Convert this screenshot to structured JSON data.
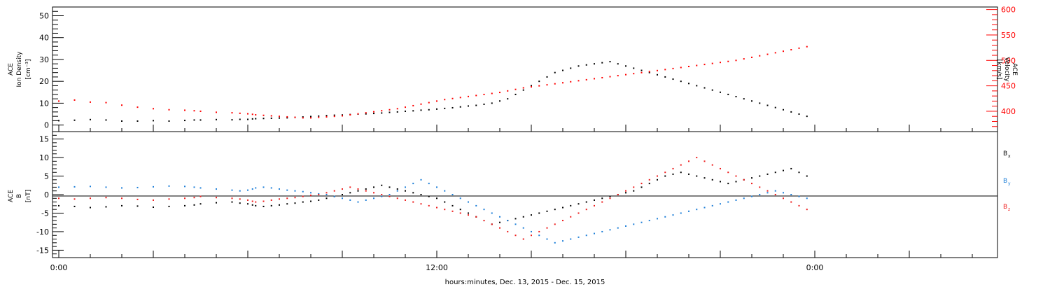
{
  "chart_data": [
    {
      "type": "scatter",
      "panel": "top",
      "ylabel_lines": [
        "ACE",
        "Ion Density",
        "[cm⁻³]"
      ],
      "ylim": [
        -3,
        54
      ],
      "yticks": [
        0,
        10,
        20,
        30,
        40,
        50
      ],
      "ylabel_right_lines": [
        "ACE",
        "Velocity",
        "[km/s]"
      ],
      "ylim_right": [
        360,
        605
      ],
      "yticks_right": [
        400,
        450,
        500,
        550,
        600
      ],
      "grid": false,
      "series": [
        {
          "axis": "left",
          "color": "#000000",
          "x": [
            0.0,
            1.0,
            2.0,
            3.0,
            4.0,
            5.0,
            6.0,
            7.0,
            8.0,
            8.6,
            9.0,
            10.0,
            11.0,
            11.5,
            12.0,
            12.3,
            12.5,
            13.0,
            13.5,
            14.0,
            14.5,
            15.0,
            15.5,
            16.0,
            16.5,
            17.0,
            17.5,
            18.0,
            18.5,
            19.0,
            19.5,
            20.0,
            20.5,
            21.0,
            21.5,
            22.0,
            22.5,
            23.0,
            23.5,
            24.0,
            24.5,
            25.0,
            25.5,
            26.0,
            26.5,
            27.0,
            27.5,
            28.0,
            28.5,
            29.0,
            29.5,
            30.0,
            30.5,
            31.0,
            31.5,
            32.0,
            32.5,
            33.0,
            33.5,
            34.0,
            34.5,
            35.0,
            35.5,
            36.0,
            36.5,
            37.0,
            37.5,
            38.0,
            38.5,
            39.0,
            39.5,
            40.0,
            40.5,
            41.0,
            41.5,
            42.0,
            42.5,
            43.0,
            43.5,
            44.0,
            44.5,
            45.0,
            45.5,
            46.0,
            46.5,
            47.0,
            47.5
          ],
          "y": [
            2,
            2.2,
            2.5,
            2.3,
            1.8,
            1.8,
            2.0,
            1.8,
            2.1,
            2.3,
            2.3,
            2.5,
            2.4,
            2.6,
            2.6,
            2.8,
            2.9,
            3.0,
            3.1,
            3.2,
            3.3,
            3.5,
            3.7,
            3.9,
            4.1,
            4.3,
            4.5,
            4.6,
            4.8,
            5.0,
            5.1,
            5.3,
            5.5,
            5.8,
            6.0,
            6.3,
            6.5,
            6.8,
            7.0,
            7.3,
            7.6,
            7.9,
            8.3,
            8.7,
            9.0,
            9.5,
            10.0,
            11.0,
            12.0,
            14.0,
            16.0,
            18.0,
            20.0,
            22.0,
            24.0,
            25.0,
            26.0,
            27.0,
            27.5,
            28.0,
            28.5,
            29.0,
            28.0,
            27.0,
            26.0,
            25.0,
            24.0,
            23.0,
            22.0,
            21.0,
            20.0,
            19.0,
            18.0,
            17.0,
            16.0,
            15.0,
            14.0,
            13.0,
            12.0,
            11.0,
            10.0,
            9.0,
            8.0,
            7.0,
            6.0,
            5.0,
            4.0
          ]
        },
        {
          "axis": "right",
          "color": "#ff0000",
          "x": [
            0.0,
            1.0,
            2.0,
            3.0,
            4.0,
            5.0,
            6.0,
            7.0,
            8.0,
            8.6,
            9.0,
            10.0,
            11.0,
            11.5,
            12.0,
            12.3,
            12.5,
            13.0,
            13.5,
            14.0,
            14.5,
            15.0,
            15.5,
            16.0,
            16.5,
            17.0,
            17.5,
            18.0,
            18.5,
            19.0,
            19.5,
            20.0,
            20.5,
            21.0,
            21.5,
            22.0,
            22.5,
            23.0,
            23.5,
            24.0,
            24.5,
            25.0,
            25.5,
            26.0,
            26.5,
            27.0,
            27.5,
            28.0,
            28.5,
            29.0,
            29.5,
            30.0,
            30.5,
            31.0,
            31.5,
            32.0,
            32.5,
            33.0,
            33.5,
            34.0,
            34.5,
            35.0,
            35.5,
            36.0,
            36.5,
            37.0,
            37.5,
            38.0,
            38.5,
            39.0,
            39.5,
            40.0,
            40.5,
            41.0,
            41.5,
            42.0,
            42.5,
            43.0,
            43.5,
            44.0,
            44.5,
            45.0,
            45.5,
            46.0,
            46.5,
            47.0,
            47.5
          ],
          "y": [
            420,
            422,
            418,
            417,
            412,
            408,
            405,
            403,
            402,
            401,
            400,
            398,
            397,
            396,
            395,
            394,
            393,
            392,
            391,
            390,
            389,
            388,
            387,
            387,
            388,
            389,
            390,
            391,
            393,
            395,
            397,
            399,
            401,
            403,
            405,
            408,
            411,
            414,
            417,
            420,
            423,
            425,
            427,
            429,
            431,
            433,
            435,
            437,
            440,
            443,
            446,
            448,
            450,
            452,
            454,
            456,
            458,
            460,
            462,
            464,
            466,
            468,
            470,
            472,
            474,
            476,
            478,
            480,
            482,
            484,
            486,
            488,
            490,
            492,
            494,
            496,
            498,
            500,
            503,
            506,
            509,
            512,
            515,
            518,
            521,
            524,
            527
          ]
        }
      ]
    },
    {
      "type": "scatter",
      "panel": "bottom",
      "ylabel_lines": [
        "ACE",
        "B",
        "[nT]"
      ],
      "ylim": [
        -17,
        17
      ],
      "yticks": [
        -15,
        -10,
        -5,
        0,
        5,
        10,
        15
      ],
      "zero_line": true,
      "grid": false,
      "legend": "right",
      "series": [
        {
          "name": "B",
          "subscript": "x",
          "color": "#000000",
          "x": [
            0.0,
            1.0,
            2.0,
            3.0,
            4.0,
            5.0,
            6.0,
            7.0,
            8.0,
            8.6,
            9.0,
            10.0,
            11.0,
            11.5,
            12.0,
            12.3,
            12.5,
            13.0,
            13.5,
            14.0,
            14.5,
            15.0,
            15.5,
            16.0,
            16.5,
            17.0,
            17.5,
            18.0,
            18.5,
            19.0,
            19.5,
            20.0,
            20.5,
            21.0,
            21.5,
            22.0,
            22.5,
            23.0,
            23.5,
            24.0,
            24.5,
            25.0,
            25.5,
            26.0,
            26.5,
            27.0,
            27.5,
            28.0,
            28.5,
            29.0,
            29.5,
            30.0,
            30.5,
            31.0,
            31.5,
            32.0,
            32.5,
            33.0,
            33.5,
            34.0,
            34.5,
            35.0,
            35.5,
            36.0,
            36.5,
            37.0,
            37.5,
            38.0,
            38.5,
            39.0,
            39.5,
            40.0,
            40.5,
            41.0,
            41.5,
            42.0,
            42.5,
            43.0,
            43.5,
            44.0,
            44.5,
            45.0,
            45.5,
            46.0,
            46.5,
            47.0,
            47.5
          ],
          "y": [
            -3,
            -3.2,
            -3.5,
            -3.3,
            -3.0,
            -3.1,
            -3.4,
            -3.2,
            -3.0,
            -2.8,
            -2.5,
            -2.2,
            -2.0,
            -2.3,
            -2.5,
            -2.8,
            -3.0,
            -3.2,
            -3.0,
            -2.8,
            -2.5,
            -2.3,
            -2.0,
            -1.8,
            -1.5,
            -1.0,
            -0.5,
            0.0,
            0.5,
            1.0,
            1.5,
            2.0,
            2.5,
            2.0,
            1.5,
            1.0,
            0.5,
            0.0,
            -0.5,
            -1.0,
            -2.0,
            -3.0,
            -4.0,
            -5.0,
            -6.0,
            -7.0,
            -8.0,
            -7.5,
            -7.0,
            -6.5,
            -6.0,
            -5.5,
            -5.0,
            -4.5,
            -4.0,
            -3.5,
            -3.0,
            -2.5,
            -2.0,
            -1.5,
            -1.0,
            -0.5,
            0.0,
            0.5,
            1.0,
            2.0,
            3.0,
            4.0,
            5.0,
            5.5,
            6.0,
            5.5,
            5.0,
            4.5,
            4.0,
            3.5,
            3.0,
            3.5,
            4.0,
            4.5,
            5.0,
            5.5,
            6.0,
            6.5,
            7.0,
            6.0,
            5.0
          ]
        },
        {
          "name": "B",
          "subscript": "y",
          "color": "#1e7fd8",
          "x": [
            0.0,
            1.0,
            2.0,
            3.0,
            4.0,
            5.0,
            6.0,
            7.0,
            8.0,
            8.6,
            9.0,
            10.0,
            11.0,
            11.5,
            12.0,
            12.3,
            12.5,
            13.0,
            13.5,
            14.0,
            14.5,
            15.0,
            15.5,
            16.0,
            16.5,
            17.0,
            17.5,
            18.0,
            18.5,
            19.0,
            19.5,
            20.0,
            20.5,
            21.0,
            21.5,
            22.0,
            22.5,
            23.0,
            23.5,
            24.0,
            24.5,
            25.0,
            25.5,
            26.0,
            26.5,
            27.0,
            27.5,
            28.0,
            28.5,
            29.0,
            29.5,
            30.0,
            30.5,
            31.0,
            31.5,
            32.0,
            32.5,
            33.0,
            33.5,
            34.0,
            34.5,
            35.0,
            35.5,
            36.0,
            36.5,
            37.0,
            37.5,
            38.0,
            38.5,
            39.0,
            39.5,
            40.0,
            40.5,
            41.0,
            41.5,
            42.0,
            42.5,
            43.0,
            43.5,
            44.0,
            44.5,
            45.0,
            45.5,
            46.0,
            46.5,
            47.0,
            47.5
          ],
          "y": [
            2,
            2.1,
            2.2,
            2.0,
            1.8,
            1.9,
            2.1,
            2.3,
            2.2,
            2.0,
            1.8,
            1.5,
            1.2,
            1.0,
            1.2,
            1.5,
            1.8,
            2.0,
            1.8,
            1.5,
            1.2,
            1.0,
            0.8,
            0.5,
            0.2,
            0.0,
            -0.5,
            -1.0,
            -1.5,
            -2.0,
            -1.5,
            -1.0,
            -0.5,
            0.0,
            1.0,
            2.0,
            3.0,
            4.0,
            3.0,
            2.0,
            1.0,
            0.0,
            -1.0,
            -2.0,
            -3.0,
            -4.0,
            -5.0,
            -6.0,
            -7.0,
            -8.0,
            -9.0,
            -10.0,
            -11.0,
            -12.0,
            -13.0,
            -12.5,
            -12.0,
            -11.5,
            -11.0,
            -10.5,
            -10.0,
            -9.5,
            -9.0,
            -8.5,
            -8.0,
            -7.5,
            -7.0,
            -6.5,
            -6.0,
            -5.5,
            -5.0,
            -4.5,
            -4.0,
            -3.5,
            -3.0,
            -2.5,
            -2.0,
            -1.5,
            -1.0,
            -0.5,
            0.0,
            0.5,
            1.0,
            0.5,
            0.0,
            -0.5,
            -1.0
          ]
        },
        {
          "name": "B",
          "subscript": "z",
          "color": "#ee1c1c",
          "x": [
            0.0,
            1.0,
            2.0,
            3.0,
            4.0,
            5.0,
            6.0,
            7.0,
            8.0,
            8.6,
            9.0,
            10.0,
            11.0,
            11.5,
            12.0,
            12.3,
            12.5,
            13.0,
            13.5,
            14.0,
            14.5,
            15.0,
            15.5,
            16.0,
            16.5,
            17.0,
            17.5,
            18.0,
            18.5,
            19.0,
            19.5,
            20.0,
            20.5,
            21.0,
            21.5,
            22.0,
            22.5,
            23.0,
            23.5,
            24.0,
            24.5,
            25.0,
            25.5,
            26.0,
            26.5,
            27.0,
            27.5,
            28.0,
            28.5,
            29.0,
            29.5,
            30.0,
            30.5,
            31.0,
            31.5,
            32.0,
            32.5,
            33.0,
            33.5,
            34.0,
            34.5,
            35.0,
            35.5,
            36.0,
            36.5,
            37.0,
            37.5,
            38.0,
            38.5,
            39.0,
            39.5,
            40.0,
            40.5,
            41.0,
            41.5,
            42.0,
            42.5,
            43.0,
            43.5,
            44.0,
            44.5,
            45.0,
            45.5,
            46.0,
            46.5,
            47.0,
            47.5
          ],
          "y": [
            -1,
            -1.2,
            -1.0,
            -0.8,
            -1.0,
            -1.3,
            -1.5,
            -1.2,
            -1.0,
            -0.8,
            -0.5,
            -0.8,
            -1.0,
            -1.2,
            -1.5,
            -1.8,
            -2.0,
            -1.8,
            -1.5,
            -1.2,
            -1.0,
            -0.8,
            -0.5,
            -0.2,
            0.0,
            0.5,
            1.0,
            1.5,
            2.0,
            1.5,
            1.0,
            0.5,
            0.0,
            -0.5,
            -1.0,
            -1.5,
            -2.0,
            -2.5,
            -3.0,
            -3.5,
            -4.0,
            -4.5,
            -5.0,
            -5.5,
            -6.0,
            -7.0,
            -8.0,
            -9.0,
            -10.0,
            -11.0,
            -12.0,
            -11.0,
            -10.0,
            -9.0,
            -8.0,
            -7.0,
            -6.0,
            -5.0,
            -4.0,
            -3.0,
            -2.0,
            -1.0,
            0.0,
            1.0,
            2.0,
            3.0,
            4.0,
            5.0,
            6.0,
            7.0,
            8.0,
            9.0,
            10.0,
            9.0,
            8.0,
            7.0,
            6.0,
            5.0,
            4.0,
            3.0,
            2.0,
            1.0,
            0.0,
            -1.0,
            -2.0,
            -3.0,
            -4.0
          ]
        }
      ]
    }
  ],
  "x_axis": {
    "range_hours": [
      -0.4,
      59.6
    ],
    "tick_labels": [
      {
        "hour": 0,
        "label": "0:00"
      },
      {
        "hour": 24,
        "label": "12:00"
      },
      {
        "hour": 48,
        "label": "0:00"
      }
    ],
    "xlabel": "hours:minutes, Dec. 13, 2015 - Dec. 15, 2015"
  },
  "colors": {
    "density": "#000000",
    "velocity": "#ff0000",
    "bx": "#000000",
    "by": "#1e7fd8",
    "bz": "#ee1c1c",
    "axis": "#000000",
    "velocity_axis": "#ff0000"
  }
}
